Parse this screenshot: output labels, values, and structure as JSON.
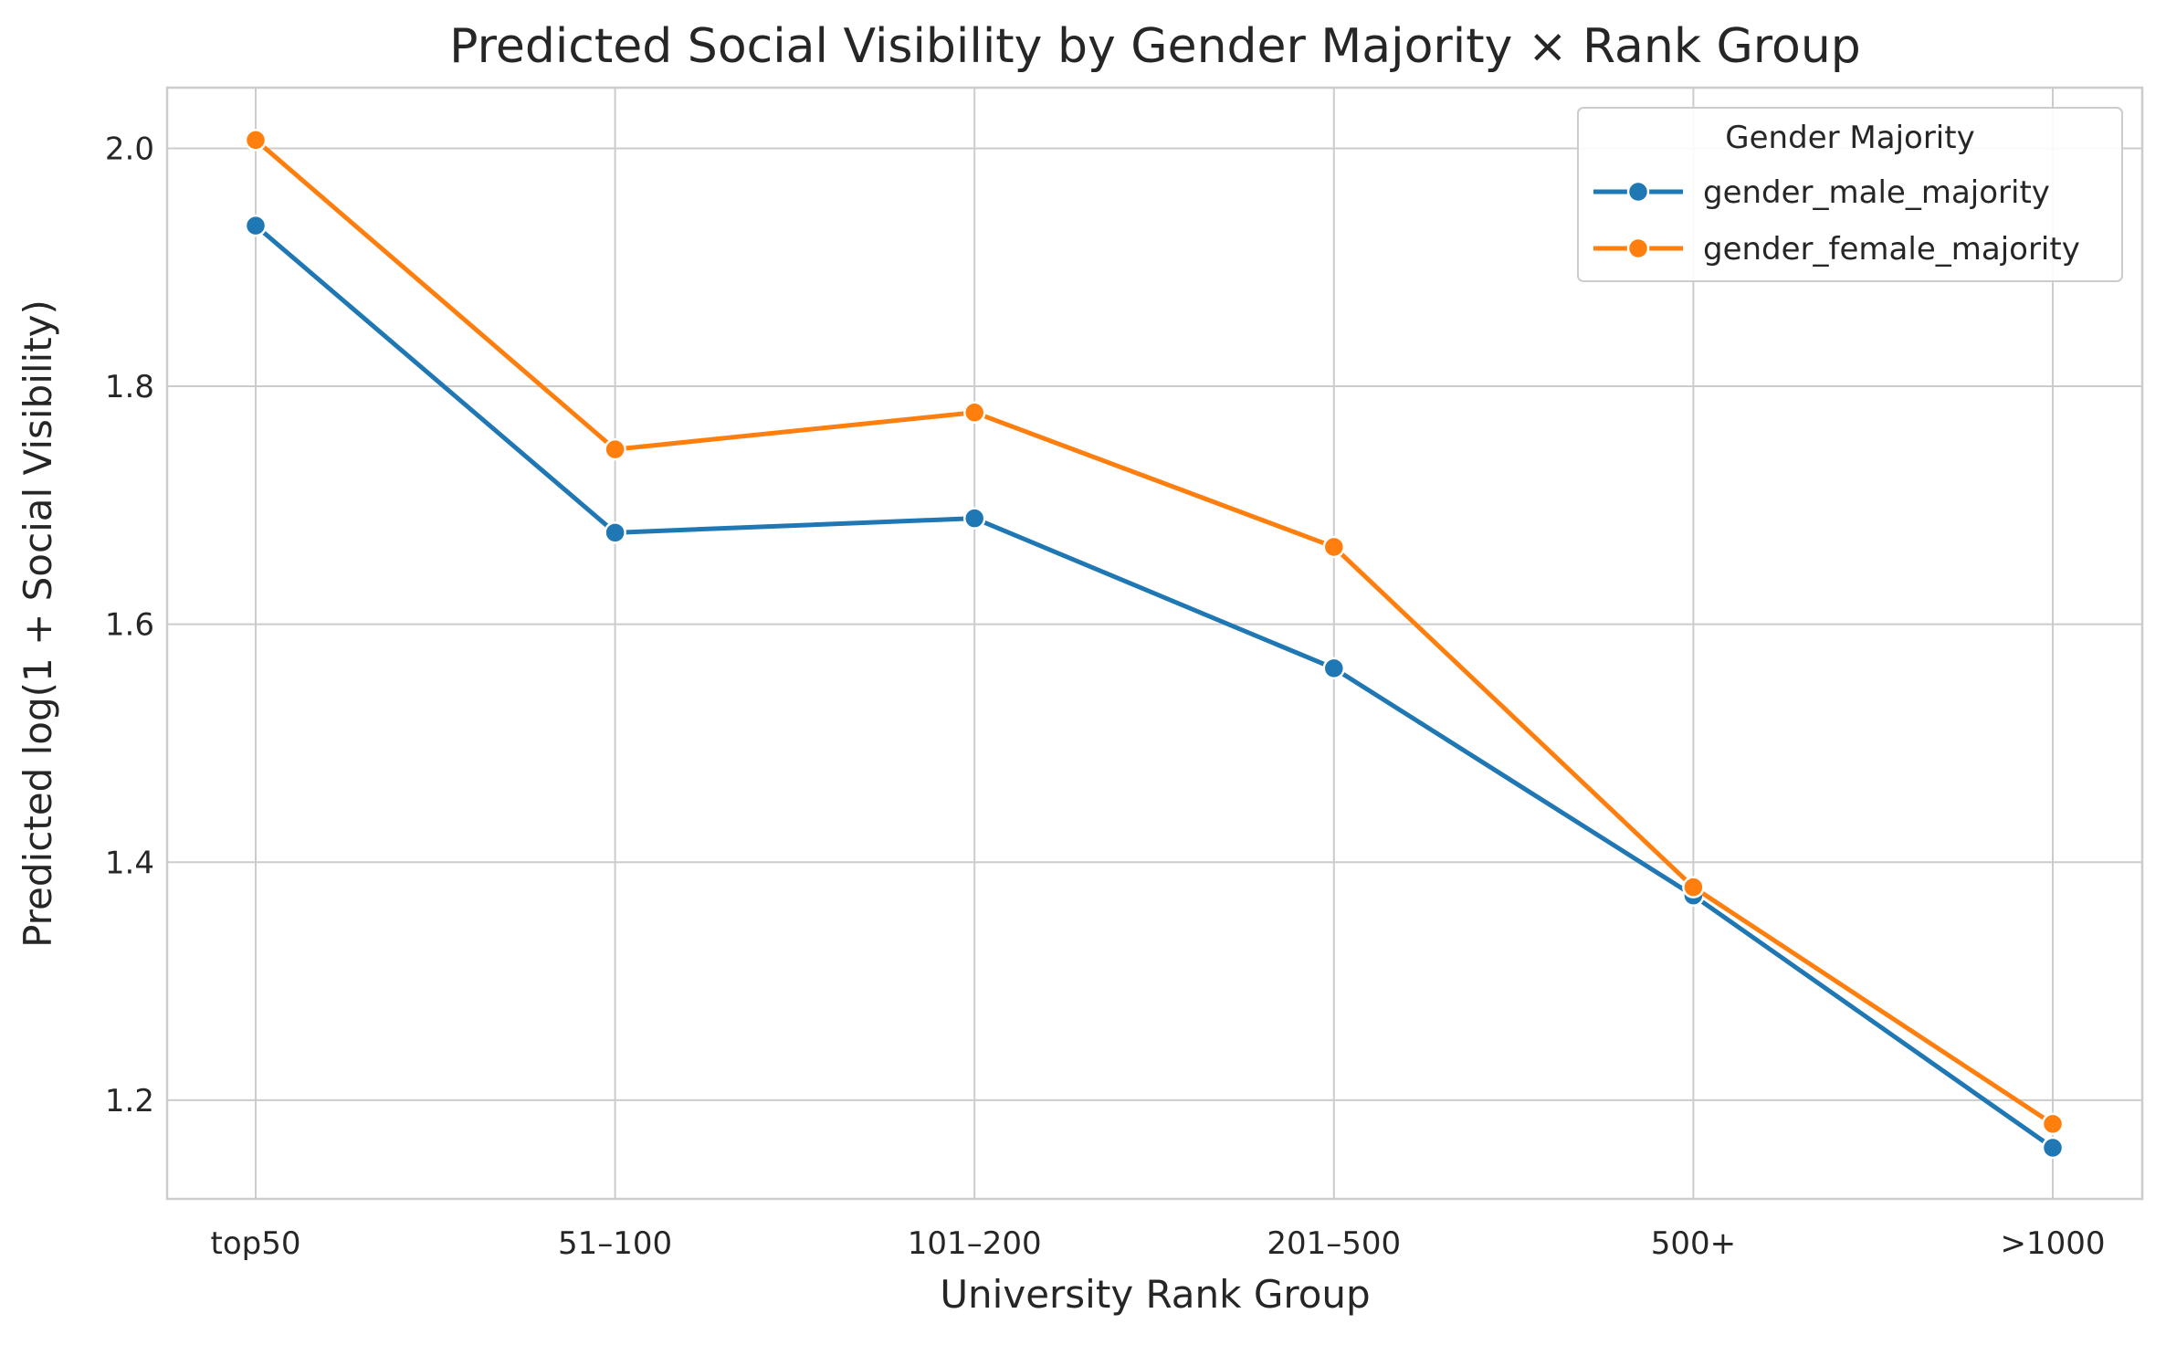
{
  "chart_data": {
    "type": "line",
    "title": "Predicted Social Visibility by Gender Majority × Rank Group",
    "xlabel": "University Rank Group",
    "ylabel": "Predicted log(1 + Social Visibility)",
    "categories": [
      "top50",
      "51–100",
      "101–200",
      "201–500",
      "500+",
      ">1000"
    ],
    "ylim": [
      1.117,
      2.051
    ],
    "yticks": [
      1.2,
      1.4,
      1.6,
      1.8,
      2.0
    ],
    "ytick_labels": [
      "1.2",
      "1.4",
      "1.6",
      "1.8",
      "2.0"
    ],
    "grid": true,
    "legend": {
      "title": "Gender Majority",
      "placement": "top-right"
    },
    "series": [
      {
        "name": "gender_male_majority",
        "color": "#1f77b4",
        "values": [
          1.935,
          1.677,
          1.689,
          1.563,
          1.372,
          1.16
        ]
      },
      {
        "name": "gender_female_majority",
        "color": "#ff7f0e",
        "values": [
          2.007,
          1.747,
          1.778,
          1.665,
          1.379,
          1.18
        ]
      }
    ]
  }
}
